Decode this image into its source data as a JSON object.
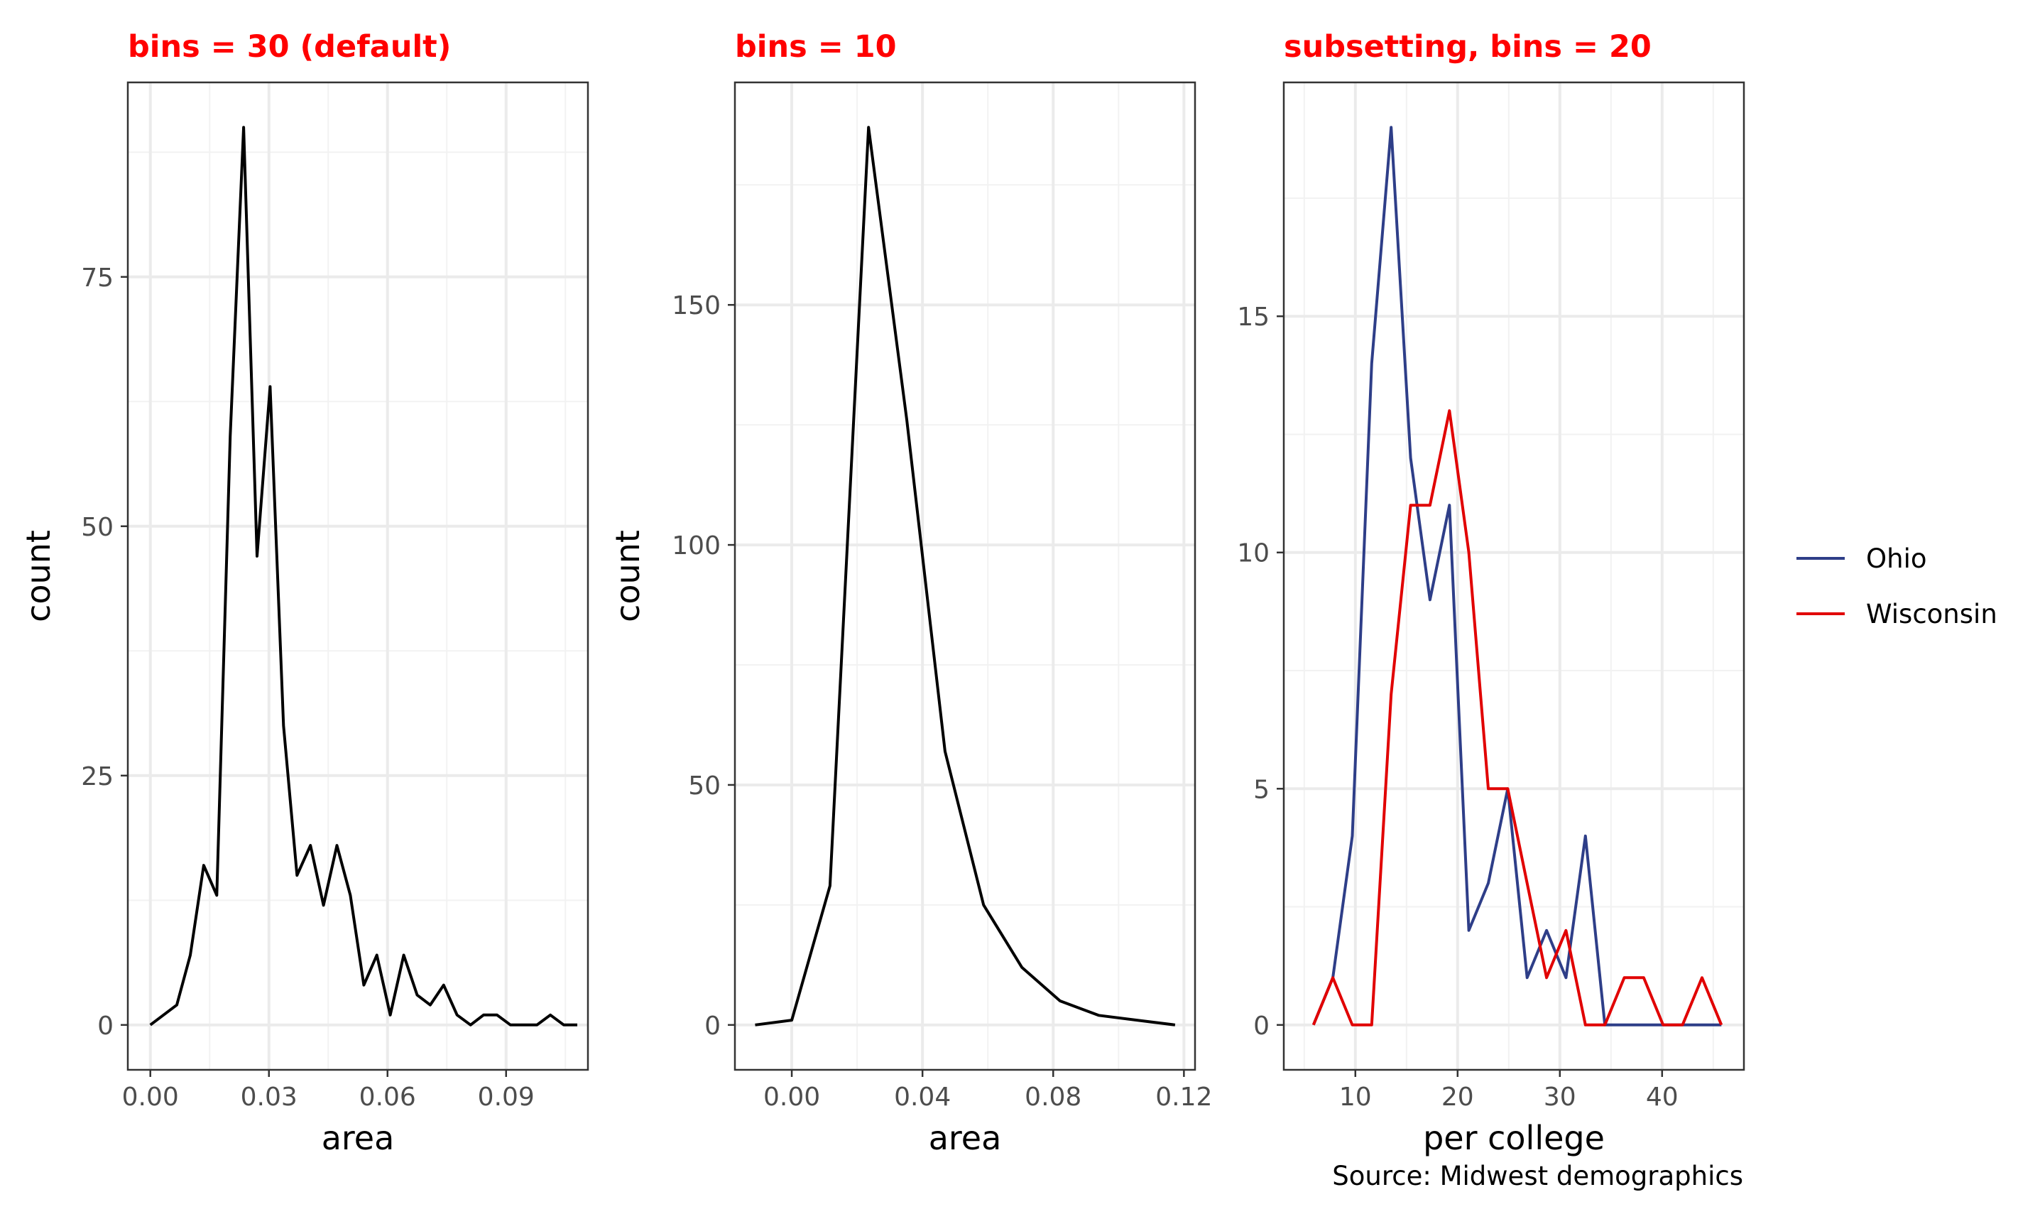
{
  "chart_data": [
    {
      "type": "line",
      "title": "bins = 30 (default)",
      "xlabel": "area",
      "ylabel": "count",
      "xlim": [
        -0.0057,
        0.1107
      ],
      "ylim": [
        -4.5,
        94.5
      ],
      "xticks": [
        0,
        0.03,
        0.06,
        0.09
      ],
      "xtick_labels": [
        "0.00",
        "0.03",
        "0.06",
        "0.09"
      ],
      "yticks": [
        0,
        25,
        50,
        75
      ],
      "ytick_labels": [
        "0",
        "25",
        "50",
        "75"
      ],
      "grid": true,
      "series": [
        {
          "color": "#000000",
          "x": [
            0.0,
            0.0067,
            0.0101,
            0.0135,
            0.0168,
            0.0202,
            0.0236,
            0.027,
            0.0303,
            0.0337,
            0.0371,
            0.0405,
            0.0438,
            0.0472,
            0.0506,
            0.054,
            0.0573,
            0.0607,
            0.0641,
            0.0675,
            0.0708,
            0.0742,
            0.0776,
            0.081,
            0.0843,
            0.0877,
            0.0911,
            0.0945,
            0.0978,
            0.1012,
            0.1046,
            0.108
          ],
          "y": [
            0,
            2,
            7,
            16,
            13,
            59,
            90,
            47,
            64,
            30,
            15,
            18,
            12,
            18,
            13,
            4,
            7,
            1,
            7,
            3,
            2,
            4,
            1,
            0,
            1,
            1,
            0,
            0,
            0,
            1,
            0,
            0
          ]
        }
      ]
    },
    {
      "type": "line",
      "title": "bins = 10",
      "xlabel": "area",
      "ylabel": "count",
      "xlim": [
        -0.0174,
        0.1234
      ],
      "ylim": [
        -9.35,
        196.35
      ],
      "xticks": [
        0,
        0.04,
        0.08,
        0.12
      ],
      "xtick_labels": [
        "0.00",
        "0.04",
        "0.08",
        "0.12"
      ],
      "yticks": [
        0,
        50,
        100,
        150
      ],
      "ytick_labels": [
        "0",
        "50",
        "100",
        "150"
      ],
      "grid": true,
      "series": [
        {
          "color": "#000000",
          "x": [
            -0.0112,
            0.0,
            0.0117,
            0.0235,
            0.0352,
            0.0469,
            0.0587,
            0.0704,
            0.0821,
            0.0939,
            0.1056,
            0.1173
          ],
          "y": [
            0,
            1,
            29,
            187,
            126,
            57,
            25,
            12,
            5,
            2,
            1,
            0
          ]
        }
      ]
    },
    {
      "type": "line",
      "title": "subsetting, bins = 20",
      "xlabel": "per college",
      "ylabel": "",
      "xlim": [
        3.0,
        48.0
      ],
      "ylim": [
        -0.95,
        19.95
      ],
      "xticks": [
        10,
        20,
        30,
        40
      ],
      "xtick_labels": [
        "10",
        "20",
        "30",
        "40"
      ],
      "yticks": [
        0,
        5,
        10,
        15
      ],
      "ytick_labels": [
        "0",
        "5",
        "10",
        "15"
      ],
      "grid": true,
      "legend": "right",
      "series": [
        {
          "name": "Ohio",
          "color": "#2e3e88",
          "x": [
            5.9,
            7.8,
            9.7,
            11.6,
            13.5,
            15.4,
            17.3,
            19.2,
            21.1,
            23.0,
            24.9,
            26.8,
            28.7,
            30.6,
            32.5,
            34.4,
            36.3,
            38.2,
            40.1,
            42.0,
            43.9,
            45.8
          ],
          "y": [
            0,
            1,
            4,
            14,
            19,
            12,
            9,
            11,
            2,
            3,
            5,
            1,
            2,
            1,
            4,
            0,
            0,
            0,
            0,
            0,
            0,
            0
          ]
        },
        {
          "name": "Wisconsin",
          "color": "#e10000",
          "x": [
            5.9,
            7.8,
            9.7,
            11.6,
            13.5,
            15.4,
            17.3,
            19.2,
            21.1,
            23.0,
            24.9,
            26.8,
            28.7,
            30.6,
            32.5,
            34.4,
            36.3,
            38.2,
            40.1,
            42.0,
            43.9,
            45.8
          ],
          "y": [
            0,
            1,
            0,
            0,
            7,
            11,
            11,
            13,
            10,
            5,
            5,
            3,
            1,
            2,
            0,
            0,
            1,
            1,
            0,
            0,
            1,
            0
          ]
        }
      ]
    }
  ],
  "title_color": "#ff0000",
  "caption": "Source: Midwest demographics"
}
